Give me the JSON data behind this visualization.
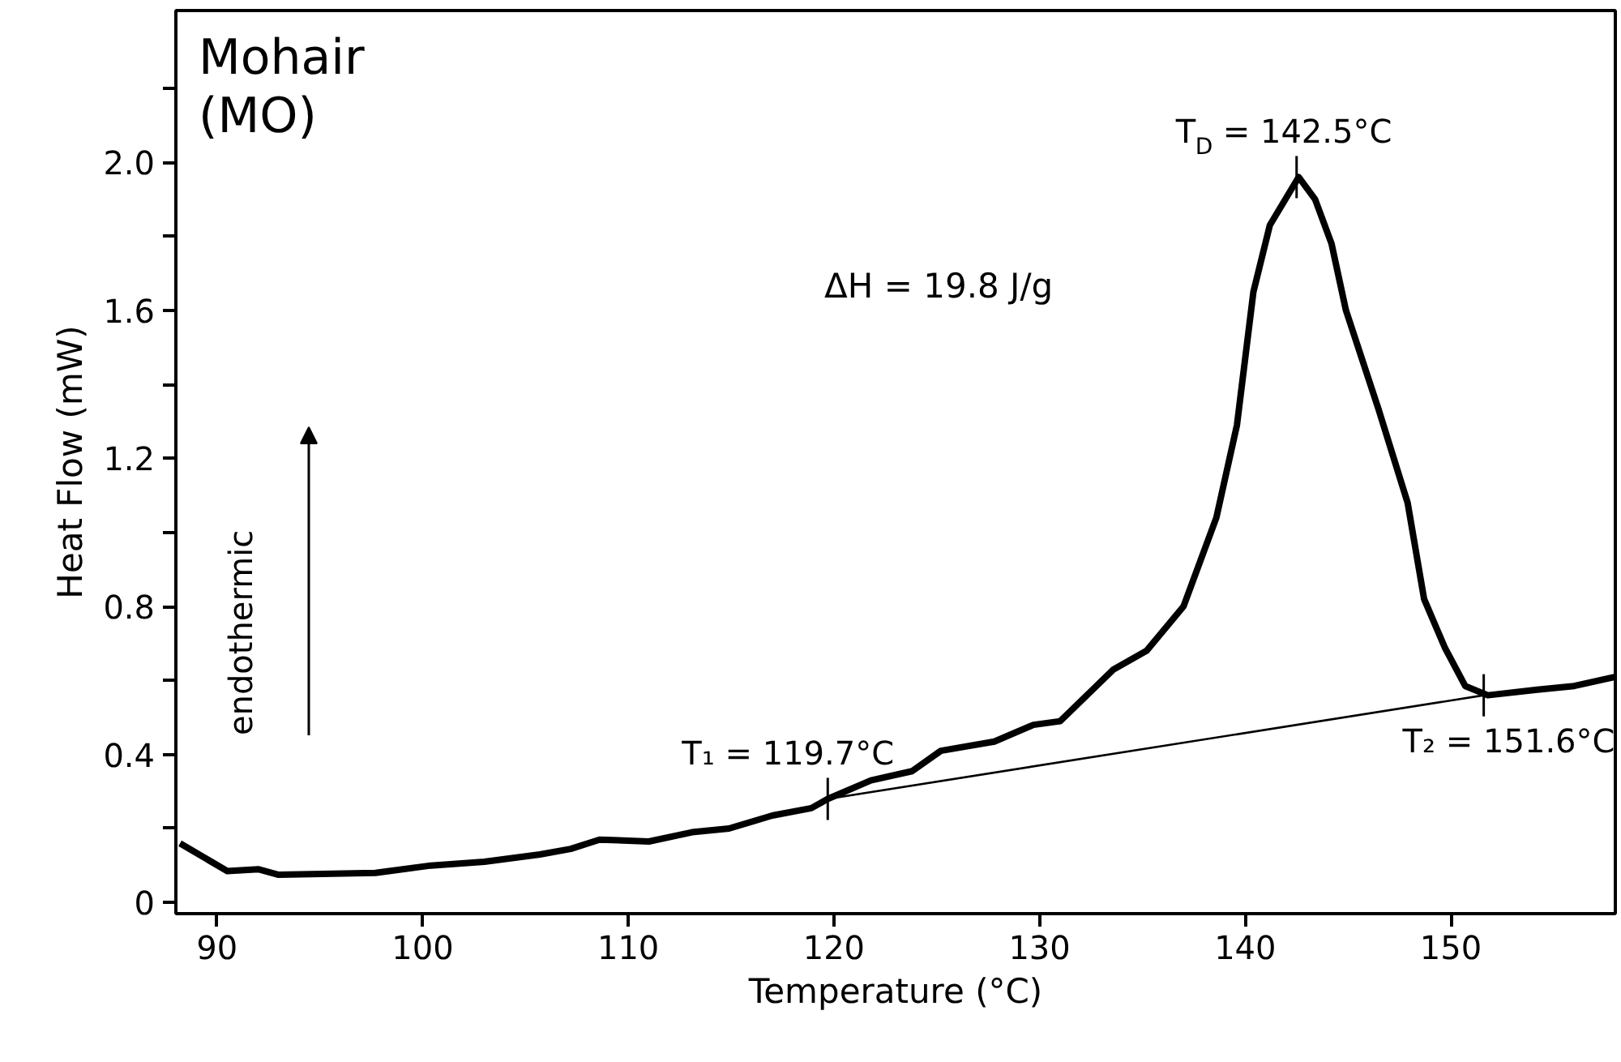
{
  "chart_data": {
    "type": "line",
    "title": "Mohair\n(MO)",
    "xlabel": "Temperature (°C)",
    "ylabel": "Heat Flow (mW)",
    "xlim": [
      88,
      158
    ],
    "xticks": [
      90,
      100,
      110,
      120,
      130,
      140,
      150
    ],
    "ylim": [
      -0.03,
      2.41
    ],
    "yticks": [
      0,
      {
        "value": 0.2,
        "label": null
      },
      0.4,
      {
        "value": 0.6,
        "label": null
      },
      0.8,
      {
        "value": 1.0,
        "label": null
      },
      1.2,
      {
        "value": 1.4,
        "label": null
      },
      1.6,
      {
        "value": 1.8,
        "label": null
      },
      "2.0",
      {
        "value": 2.2,
        "label": null
      }
    ],
    "grid": false,
    "marker": "none",
    "line_style": "solid",
    "series": [
      {
        "color": "#000000",
        "x": [
          88.2,
          90.5,
          92.0,
          93.0,
          97.7,
          100.4,
          103.0,
          105.7,
          107.2,
          108.6,
          111.0,
          113.1,
          114.9,
          117.0,
          118.9,
          119.7,
          121.8,
          123.8,
          125.2,
          127.8,
          129.7,
          131.0,
          133.6,
          135.2,
          137.0,
          138.6,
          139.6,
          140.4,
          141.2,
          142.6,
          143.4,
          144.2,
          144.9,
          146.5,
          147.9,
          148.7,
          149.7,
          150.7,
          151.8,
          154.2,
          156.0,
          158.0
        ],
        "values": [
          0.16,
          0.085,
          0.09,
          0.075,
          0.08,
          0.1,
          0.11,
          0.13,
          0.145,
          0.17,
          0.165,
          0.19,
          0.2,
          0.235,
          0.255,
          0.28,
          0.33,
          0.355,
          0.41,
          0.435,
          0.48,
          0.49,
          0.63,
          0.68,
          0.8,
          1.04,
          1.29,
          1.65,
          1.83,
          1.96,
          1.9,
          1.78,
          1.6,
          1.33,
          1.08,
          0.82,
          0.69,
          0.585,
          0.56,
          0.575,
          0.585,
          0.61
        ]
      },
      {
        "color": "#000000",
        "type": "line",
        "line_style": "solid",
        "x": [
          119.7,
          151.6
        ],
        "values": [
          0.28,
          0.56
        ]
      }
    ],
    "annotations": [
      {
        "text": "T₁ = 119.7°C",
        "x": 119.7,
        "y": 0.28
      },
      {
        "text": "T$_{D}$ = 142.5°C",
        "x": 142.5,
        "y": 1.96
      },
      {
        "text": "T₂ = 151.6°C",
        "x": 151.6,
        "y": 0.56
      },
      "ΔH = 19.8 J/g",
      "endothermic"
    ]
  }
}
